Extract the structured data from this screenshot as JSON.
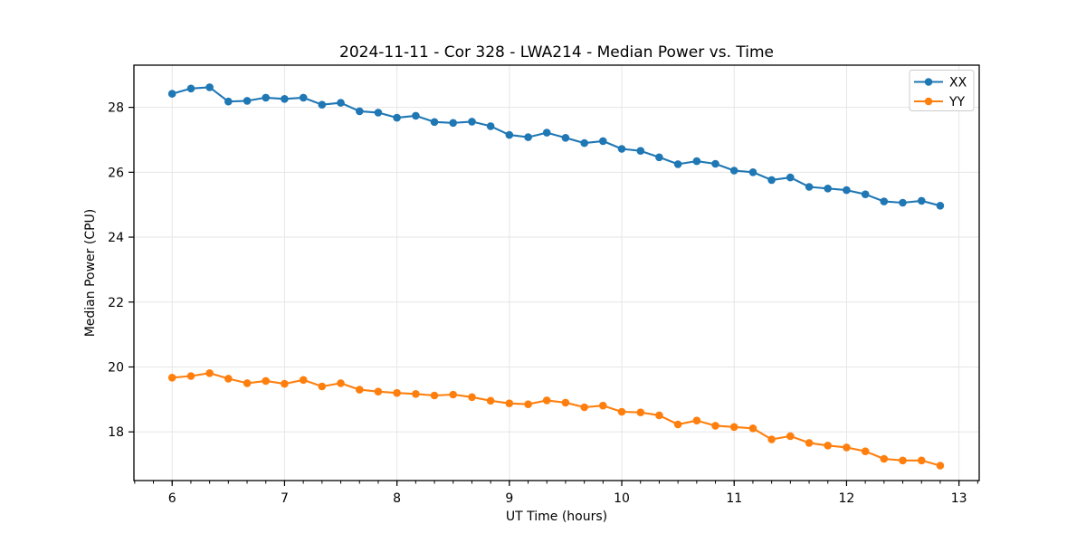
{
  "figure": {
    "background": "#ffffff",
    "text_color": "#000000",
    "grid_color": "#e6e6e6",
    "spine_color": "#000000",
    "legend_border_color": "#cccccc"
  },
  "chart_data": {
    "type": "line",
    "title": "2024-11-11 - Cor 328 - LWA214 - Median Power vs. Time",
    "xlabel": "UT Time (hours)",
    "ylabel": "Median Power (CPU)",
    "xlim": [
      5.66,
      13.18
    ],
    "ylim": [
      16.5,
      29.3
    ],
    "x_major_ticks": [
      6,
      7,
      8,
      9,
      10,
      11,
      12,
      13
    ],
    "x_minor_step": 0.166667,
    "y_major_ticks": [
      18,
      20,
      22,
      24,
      26,
      28
    ],
    "grid": true,
    "legend_position": "upper right",
    "marker": "circle",
    "x": [
      6.0,
      6.167,
      6.333,
      6.5,
      6.667,
      6.833,
      7.0,
      7.167,
      7.333,
      7.5,
      7.667,
      7.833,
      8.0,
      8.167,
      8.333,
      8.5,
      8.667,
      8.833,
      9.0,
      9.167,
      9.333,
      9.5,
      9.667,
      9.833,
      10.0,
      10.167,
      10.333,
      10.5,
      10.667,
      10.833,
      11.0,
      11.167,
      11.333,
      11.5,
      11.667,
      11.833,
      12.0,
      12.167,
      12.333,
      12.5,
      12.667,
      12.833
    ],
    "series": [
      {
        "name": "XX",
        "color": "#1f77b4",
        "values": [
          28.42,
          28.58,
          28.62,
          28.18,
          28.2,
          28.3,
          28.26,
          28.3,
          28.08,
          28.14,
          27.88,
          27.84,
          27.68,
          27.74,
          27.55,
          27.52,
          27.56,
          27.42,
          27.15,
          27.08,
          27.22,
          27.06,
          26.9,
          26.96,
          26.72,
          26.66,
          26.46,
          26.25,
          26.34,
          26.26,
          26.05,
          26.0,
          25.76,
          25.84,
          25.55,
          25.5,
          25.45,
          25.32,
          25.1,
          25.06,
          25.12,
          24.97
        ]
      },
      {
        "name": "YY",
        "color": "#ff7f0e",
        "values": [
          19.67,
          19.72,
          19.81,
          19.64,
          19.5,
          19.57,
          19.48,
          19.6,
          19.4,
          19.5,
          19.3,
          19.24,
          19.2,
          19.17,
          19.12,
          19.15,
          19.07,
          18.96,
          18.88,
          18.85,
          18.97,
          18.9,
          18.76,
          18.81,
          18.62,
          18.6,
          18.51,
          18.23,
          18.35,
          18.19,
          18.15,
          18.11,
          17.77,
          17.87,
          17.66,
          17.58,
          17.52,
          17.4,
          17.17,
          17.12,
          17.12,
          16.96
        ]
      }
    ]
  }
}
